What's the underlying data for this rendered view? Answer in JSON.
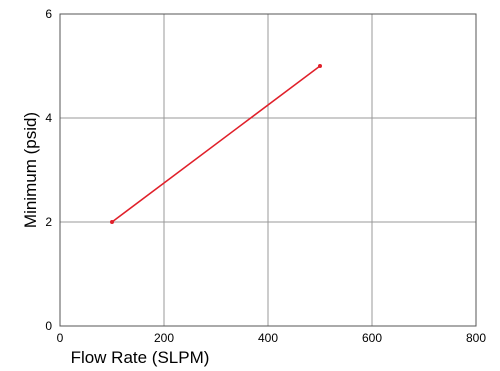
{
  "chart_data": {
    "type": "line",
    "title": "",
    "xlabel": "Flow Rate (SLPM)",
    "ylabel": "Minimum (psid)",
    "xlim": [
      0,
      800
    ],
    "ylim": [
      0,
      6
    ],
    "xticks": [
      0,
      200,
      400,
      600,
      800
    ],
    "yticks": [
      0,
      2,
      4,
      6
    ],
    "grid": true,
    "series": [
      {
        "x": [
          100,
          500
        ],
        "y": [
          2,
          5
        ],
        "color": "#e0202a"
      }
    ]
  },
  "colors": {
    "grid": "#999999",
    "frame": "#555555"
  }
}
